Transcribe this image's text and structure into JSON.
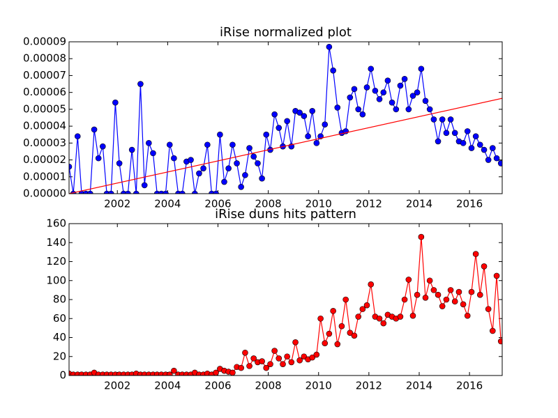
{
  "chart_data": [
    {
      "type": "line",
      "title": "iRise normalized plot",
      "x": [
        2000.08,
        2000.25,
        2000.42,
        2000.58,
        2000.75,
        2000.92,
        2001.08,
        2001.25,
        2001.42,
        2001.58,
        2001.75,
        2001.92,
        2002.08,
        2002.25,
        2002.42,
        2002.58,
        2002.75,
        2002.92,
        2003.08,
        2003.25,
        2003.42,
        2003.58,
        2003.75,
        2003.92,
        2004.08,
        2004.25,
        2004.42,
        2004.58,
        2004.75,
        2004.92,
        2005.08,
        2005.25,
        2005.42,
        2005.58,
        2005.75,
        2005.92,
        2006.08,
        2006.25,
        2006.42,
        2006.58,
        2006.75,
        2006.92,
        2007.08,
        2007.25,
        2007.42,
        2007.58,
        2007.75,
        2007.92,
        2008.08,
        2008.25,
        2008.42,
        2008.58,
        2008.75,
        2008.92,
        2009.08,
        2009.25,
        2009.42,
        2009.58,
        2009.75,
        2009.92,
        2010.08,
        2010.25,
        2010.42,
        2010.58,
        2010.75,
        2010.92,
        2011.08,
        2011.25,
        2011.42,
        2011.58,
        2011.75,
        2011.92,
        2012.08,
        2012.25,
        2012.42,
        2012.58,
        2012.75,
        2012.92,
        2013.08,
        2013.25,
        2013.42,
        2013.58,
        2013.75,
        2013.92,
        2014.08,
        2014.25,
        2014.42,
        2014.58,
        2014.75,
        2014.92,
        2015.08,
        2015.25,
        2015.42,
        2015.58,
        2015.75,
        2015.92,
        2016.08,
        2016.25,
        2016.42,
        2016.58,
        2016.75,
        2016.92,
        2017.08,
        2017.25
      ],
      "series": [
        {
          "color": "#0000ff",
          "marker": "o",
          "values": [
            1.6e-05,
            0,
            3.4e-05,
            0,
            0,
            0,
            3.8e-05,
            2.1e-05,
            2.8e-05,
            0,
            0,
            5.4e-05,
            1.8e-05,
            0,
            0,
            2.6e-05,
            0,
            6.5e-05,
            5e-06,
            3e-05,
            2.4e-05,
            0,
            0,
            0,
            2.9e-05,
            2.1e-05,
            0,
            0,
            1.9e-05,
            2e-05,
            0,
            1.2e-05,
            1.5e-05,
            2.9e-05,
            0,
            0,
            3.5e-05,
            7e-06,
            1.5e-05,
            2.9e-05,
            1.8e-05,
            4e-06,
            1.1e-05,
            2.7e-05,
            2.2e-05,
            1.8e-05,
            9e-06,
            3.5e-05,
            2.6e-05,
            4.7e-05,
            3.9e-05,
            2.8e-05,
            4.3e-05,
            2.8e-05,
            4.9e-05,
            4.8e-05,
            4.6e-05,
            3.4e-05,
            4.9e-05,
            3e-05,
            3.4e-05,
            4.1e-05,
            8.7e-05,
            7.3e-05,
            5.1e-05,
            3.6e-05,
            3.7e-05,
            5.7e-05,
            6.2e-05,
            5e-05,
            4.7e-05,
            6.3e-05,
            7.4e-05,
            6.1e-05,
            5.6e-05,
            6e-05,
            6.7e-05,
            5.4e-05,
            5e-05,
            6.4e-05,
            6.8e-05,
            5e-05,
            5.8e-05,
            6e-05,
            7.4e-05,
            5.5e-05,
            5e-05,
            4.4e-05,
            3.1e-05,
            4.4e-05,
            3.6e-05,
            4.4e-05,
            3.6e-05,
            3.1e-05,
            3e-05,
            3.7e-05,
            2.7e-05,
            3.4e-05,
            2.9e-05,
            2.6e-05,
            2e-05,
            2.7e-05,
            2.1e-05,
            1.8e-05
          ]
        },
        {
          "color": "#ff0000",
          "x": [
            2000.08,
            2017.3
          ],
          "values": [
            0,
            5.65e-05
          ]
        }
      ],
      "xlim": [
        2000.08,
        2017.3
      ],
      "xticks": [
        2002,
        2004,
        2006,
        2008,
        2010,
        2012,
        2014,
        2016
      ],
      "ylim": [
        0,
        9e-05
      ],
      "yticks": [
        {
          "value": 0,
          "label": "0.00000"
        },
        {
          "value": 1e-05,
          "label": "0.00001"
        },
        {
          "value": 2e-05,
          "label": "0.00002"
        },
        {
          "value": 3e-05,
          "label": "0.00003"
        },
        {
          "value": 4e-05,
          "label": "0.00004"
        },
        {
          "value": 5e-05,
          "label": "0.00005"
        },
        {
          "value": 6e-05,
          "label": "0.00006"
        },
        {
          "value": 7e-05,
          "label": "0.00007"
        },
        {
          "value": 8e-05,
          "label": "0.00008"
        },
        {
          "value": 9e-05,
          "label": "0.00009"
        }
      ]
    },
    {
      "type": "line",
      "title": "iRise duns hits pattern",
      "x": [
        2000.08,
        2000.25,
        2000.42,
        2000.58,
        2000.75,
        2000.92,
        2001.08,
        2001.25,
        2001.42,
        2001.58,
        2001.75,
        2001.92,
        2002.08,
        2002.25,
        2002.42,
        2002.58,
        2002.75,
        2002.92,
        2003.08,
        2003.25,
        2003.42,
        2003.58,
        2003.75,
        2003.92,
        2004.08,
        2004.25,
        2004.42,
        2004.58,
        2004.75,
        2004.92,
        2005.08,
        2005.25,
        2005.42,
        2005.58,
        2005.75,
        2005.92,
        2006.08,
        2006.25,
        2006.42,
        2006.58,
        2006.75,
        2006.92,
        2007.08,
        2007.25,
        2007.42,
        2007.58,
        2007.75,
        2007.92,
        2008.08,
        2008.25,
        2008.42,
        2008.58,
        2008.75,
        2008.92,
        2009.08,
        2009.25,
        2009.42,
        2009.58,
        2009.75,
        2009.92,
        2010.08,
        2010.25,
        2010.42,
        2010.58,
        2010.75,
        2010.92,
        2011.08,
        2011.25,
        2011.42,
        2011.58,
        2011.75,
        2011.92,
        2012.08,
        2012.25,
        2012.42,
        2012.58,
        2012.75,
        2012.92,
        2013.08,
        2013.25,
        2013.42,
        2013.58,
        2013.75,
        2013.92,
        2014.08,
        2014.25,
        2014.42,
        2014.58,
        2014.75,
        2014.92,
        2015.08,
        2015.25,
        2015.42,
        2015.58,
        2015.75,
        2015.92,
        2016.08,
        2016.25,
        2016.42,
        2016.58,
        2016.75,
        2016.92,
        2017.08,
        2017.25
      ],
      "series": [
        {
          "color": "#ff0000",
          "marker": "o",
          "values": [
            2,
            1,
            1,
            1,
            1,
            1,
            3,
            1,
            1,
            1,
            1,
            1,
            1,
            1,
            1,
            1,
            2,
            1,
            1,
            1,
            1,
            1,
            1,
            1,
            1,
            5,
            1,
            1,
            1,
            1,
            3,
            1,
            1,
            2,
            1,
            3,
            7,
            5,
            4,
            3,
            9,
            8,
            24,
            10,
            18,
            14,
            15,
            8,
            12,
            26,
            18,
            12,
            20,
            14,
            35,
            16,
            20,
            17,
            19,
            22,
            60,
            34,
            44,
            68,
            33,
            52,
            80,
            45,
            42,
            62,
            70,
            74,
            96,
            62,
            60,
            55,
            64,
            62,
            60,
            62,
            80,
            101,
            63,
            85,
            146,
            82,
            100,
            90,
            85,
            73,
            80,
            90,
            78,
            88,
            75,
            63,
            88,
            128,
            85,
            115,
            70,
            47,
            105,
            36
          ]
        }
      ],
      "xlim": [
        2000.08,
        2017.3
      ],
      "xticks": [
        2002,
        2004,
        2006,
        2008,
        2010,
        2012,
        2014,
        2016
      ],
      "ylim": [
        0,
        160
      ],
      "yticks": [
        0,
        20,
        40,
        60,
        80,
        100,
        120,
        140,
        160
      ]
    }
  ]
}
